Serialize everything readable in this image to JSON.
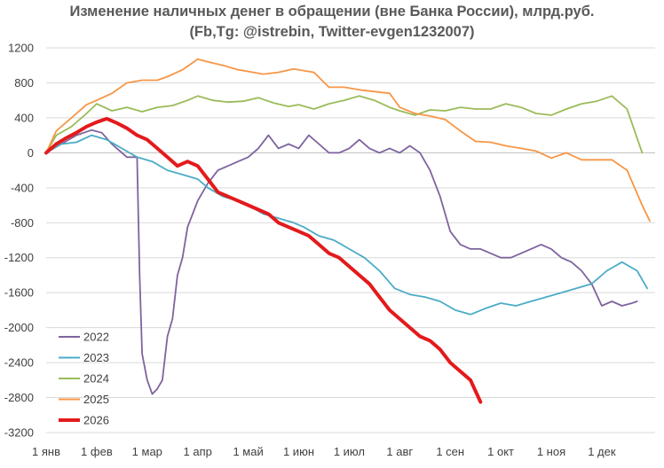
{
  "chart_data": {
    "type": "line",
    "title": "Изменение наличных денег в обращении (вне Банка России), млрд.руб.",
    "subtitle": "(Fb,Tg: @istrebin, Twitter-evgen1232007)",
    "xlabel": "",
    "ylabel": "",
    "ylim": [
      -3200,
      1200
    ],
    "xlim": [
      0,
      12
    ],
    "y_ticks": [
      1200,
      800,
      400,
      0,
      -400,
      -800,
      -1200,
      -1600,
      -2000,
      -2400,
      -2800,
      -3200
    ],
    "y_tick_labels": [
      "1200",
      "800",
      "400",
      "0",
      "-400",
      "-800",
      "-1200",
      "-1600",
      "-2000",
      "-2400",
      "-2800",
      "-3200"
    ],
    "x_tick_labels": [
      "1 янв",
      "1 фев",
      "1 мар",
      "1 апр",
      "1 май",
      "1 июн",
      "1 июл",
      "1 авг",
      "1 сен",
      "1 окт",
      "1 ноя",
      "1 дек"
    ],
    "x_unit": "months since 1 янв",
    "grid": "horizontal",
    "legend_position": "bottom-left",
    "series": [
      {
        "name": "2022",
        "color": "#7E649E",
        "x": [
          0,
          0.3,
          0.6,
          0.9,
          1.1,
          1.3,
          1.6,
          1.8,
          1.85,
          1.9,
          2.0,
          2.1,
          2.2,
          2.3,
          2.4,
          2.5,
          2.6,
          2.7,
          2.8,
          2.9,
          3.0,
          3.2,
          3.4,
          3.6,
          3.8,
          4.0,
          4.2,
          4.4,
          4.6,
          4.8,
          5.0,
          5.2,
          5.4,
          5.6,
          5.8,
          6.0,
          6.2,
          6.4,
          6.6,
          6.8,
          7.0,
          7.2,
          7.4,
          7.6,
          7.8,
          8.0,
          8.2,
          8.4,
          8.6,
          8.8,
          9.0,
          9.2,
          9.4,
          9.6,
          9.8,
          10.0,
          10.2,
          10.4,
          10.6,
          10.8,
          11.0,
          11.2,
          11.4,
          11.6,
          11.7
        ],
        "y": [
          0,
          100,
          200,
          260,
          230,
          100,
          -50,
          -50,
          -1400,
          -2300,
          -2600,
          -2760,
          -2700,
          -2600,
          -2100,
          -1900,
          -1400,
          -1200,
          -850,
          -700,
          -550,
          -350,
          -200,
          -150,
          -100,
          -50,
          50,
          200,
          50,
          100,
          50,
          200,
          100,
          0,
          0,
          50,
          150,
          50,
          0,
          50,
          0,
          80,
          0,
          -200,
          -500,
          -900,
          -1050,
          -1100,
          -1100,
          -1150,
          -1200,
          -1200,
          -1150,
          -1100,
          -1050,
          -1100,
          -1200,
          -1250,
          -1350,
          -1500,
          -1750,
          -1700,
          -1750,
          -1720,
          -1700
        ]
      },
      {
        "name": "2023",
        "color": "#4BACC6",
        "x": [
          0,
          0.3,
          0.6,
          0.9,
          1.2,
          1.5,
          1.8,
          2.1,
          2.4,
          2.7,
          3.0,
          3.2,
          3.5,
          3.8,
          4.0,
          4.3,
          4.6,
          4.9,
          5.1,
          5.4,
          5.7,
          6.0,
          6.3,
          6.6,
          6.9,
          7.2,
          7.5,
          7.8,
          8.1,
          8.4,
          8.7,
          9.0,
          9.3,
          9.6,
          9.9,
          10.2,
          10.5,
          10.8,
          11.1,
          11.4,
          11.7,
          11.9
        ],
        "y": [
          0,
          100,
          120,
          200,
          150,
          50,
          -50,
          -100,
          -200,
          -250,
          -300,
          -400,
          -500,
          -550,
          -600,
          -700,
          -750,
          -800,
          -850,
          -950,
          -1000,
          -1100,
          -1200,
          -1350,
          -1550,
          -1620,
          -1650,
          -1700,
          -1800,
          -1850,
          -1780,
          -1720,
          -1750,
          -1700,
          -1650,
          -1600,
          -1550,
          -1500,
          -1350,
          -1250,
          -1350,
          -1550
        ]
      },
      {
        "name": "2024",
        "color": "#9BBB59",
        "x": [
          0,
          0.2,
          0.5,
          0.8,
          1.0,
          1.3,
          1.6,
          1.9,
          2.2,
          2.5,
          2.8,
          3.0,
          3.3,
          3.6,
          3.9,
          4.2,
          4.5,
          4.8,
          5.0,
          5.3,
          5.6,
          5.9,
          6.2,
          6.5,
          6.8,
          7.0,
          7.3,
          7.6,
          7.9,
          8.2,
          8.5,
          8.8,
          9.1,
          9.4,
          9.7,
          10.0,
          10.3,
          10.6,
          10.9,
          11.2,
          11.5,
          11.8
        ],
        "y": [
          0,
          200,
          300,
          450,
          560,
          480,
          520,
          470,
          520,
          540,
          600,
          650,
          600,
          580,
          590,
          630,
          570,
          530,
          550,
          500,
          560,
          600,
          650,
          600,
          520,
          480,
          430,
          490,
          480,
          520,
          500,
          500,
          560,
          520,
          450,
          430,
          500,
          560,
          590,
          650,
          500,
          0
        ]
      },
      {
        "name": "2025",
        "color": "#F79646",
        "x": [
          0,
          0.2,
          0.5,
          0.8,
          1.0,
          1.3,
          1.6,
          1.9,
          2.2,
          2.4,
          2.7,
          3.0,
          3.2,
          3.5,
          3.8,
          4.0,
          4.3,
          4.6,
          4.9,
          5.0,
          5.3,
          5.6,
          5.9,
          6.2,
          6.5,
          6.8,
          7.0,
          7.3,
          7.6,
          7.9,
          8.2,
          8.5,
          8.8,
          9.1,
          9.4,
          9.7,
          10.0,
          10.3,
          10.6,
          10.9,
          11.2,
          11.5,
          11.8,
          11.95
        ],
        "y": [
          0,
          250,
          400,
          550,
          600,
          680,
          800,
          830,
          830,
          870,
          950,
          1070,
          1040,
          1000,
          950,
          930,
          900,
          920,
          960,
          950,
          920,
          750,
          750,
          720,
          700,
          680,
          520,
          450,
          420,
          380,
          250,
          130,
          120,
          80,
          50,
          20,
          -60,
          0,
          -80,
          -80,
          -80,
          -200,
          -600,
          -780
        ]
      },
      {
        "name": "2026",
        "color": "#E31A1C",
        "x": [
          0,
          0.2,
          0.4,
          0.6,
          0.8,
          1.0,
          1.2,
          1.4,
          1.6,
          1.8,
          2.0,
          2.2,
          2.4,
          2.6,
          2.8,
          3.0,
          3.2,
          3.4,
          3.6,
          3.8,
          4.0,
          4.2,
          4.4,
          4.6,
          4.8,
          5.0,
          5.2,
          5.4,
          5.6,
          5.8,
          6.0,
          6.2,
          6.4,
          6.6,
          6.8,
          7.0,
          7.2,
          7.4,
          7.6,
          7.8,
          8.0,
          8.2,
          8.4,
          8.6
        ],
        "y": [
          0,
          100,
          170,
          230,
          300,
          350,
          390,
          340,
          280,
          200,
          150,
          50,
          -50,
          -150,
          -100,
          -150,
          -300,
          -450,
          -500,
          -550,
          -600,
          -650,
          -700,
          -800,
          -850,
          -900,
          -950,
          -1050,
          -1150,
          -1200,
          -1300,
          -1400,
          -1500,
          -1650,
          -1800,
          -1900,
          -2000,
          -2100,
          -2150,
          -2250,
          -2400,
          -2500,
          -2600,
          -2850
        ]
      }
    ]
  }
}
